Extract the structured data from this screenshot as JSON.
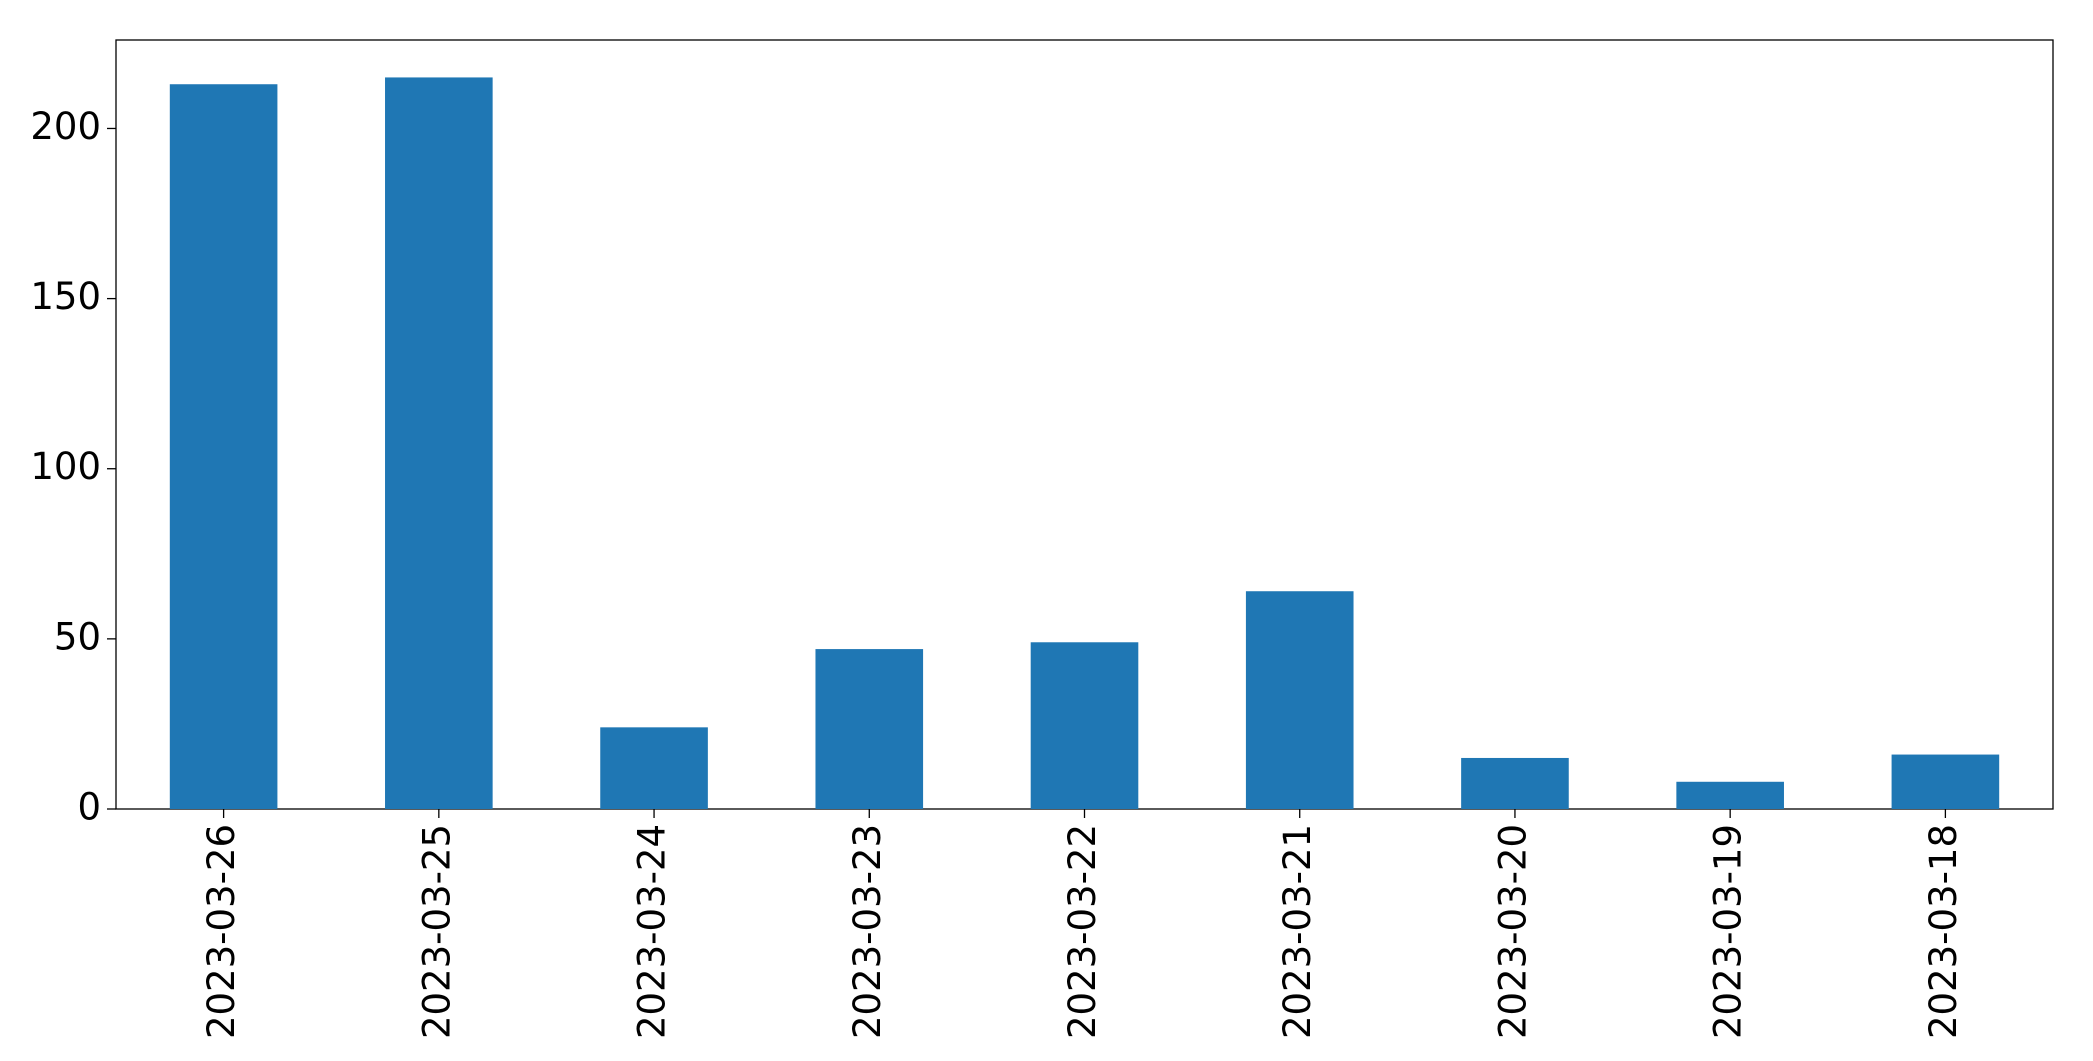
{
  "chart_data": {
    "type": "bar",
    "categories": [
      "2023-03-26",
      "2023-03-25",
      "2023-03-24",
      "2023-03-23",
      "2023-03-22",
      "2023-03-21",
      "2023-03-20",
      "2023-03-19",
      "2023-03-18"
    ],
    "values": [
      213,
      215,
      24,
      47,
      49,
      64,
      15,
      8,
      16
    ],
    "color": "#1f77b4",
    "ylim": [
      0,
      226
    ],
    "yticks": [
      0,
      50,
      100,
      150,
      200
    ],
    "grid": false
  }
}
